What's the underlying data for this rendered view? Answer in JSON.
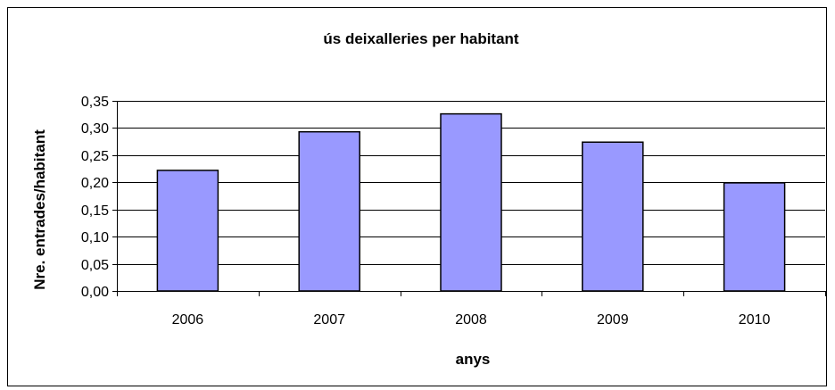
{
  "chart_data": {
    "type": "bar",
    "title": "ús deixalleries per habitant",
    "xlabel": "anys",
    "ylabel": "Nre. entrades/habitant",
    "categories": [
      "2006",
      "2007",
      "2008",
      "2009",
      "2010"
    ],
    "values": [
      0.222,
      0.293,
      0.326,
      0.274,
      0.199
    ],
    "ylim": [
      0,
      0.35
    ],
    "yticks": [
      "0,00",
      "0,05",
      "0,10",
      "0,15",
      "0,20",
      "0,25",
      "0,30",
      "0,35"
    ],
    "grid": true,
    "legend": "none",
    "bar_color": "#9999ff",
    "bar_border_color": "#000000"
  }
}
